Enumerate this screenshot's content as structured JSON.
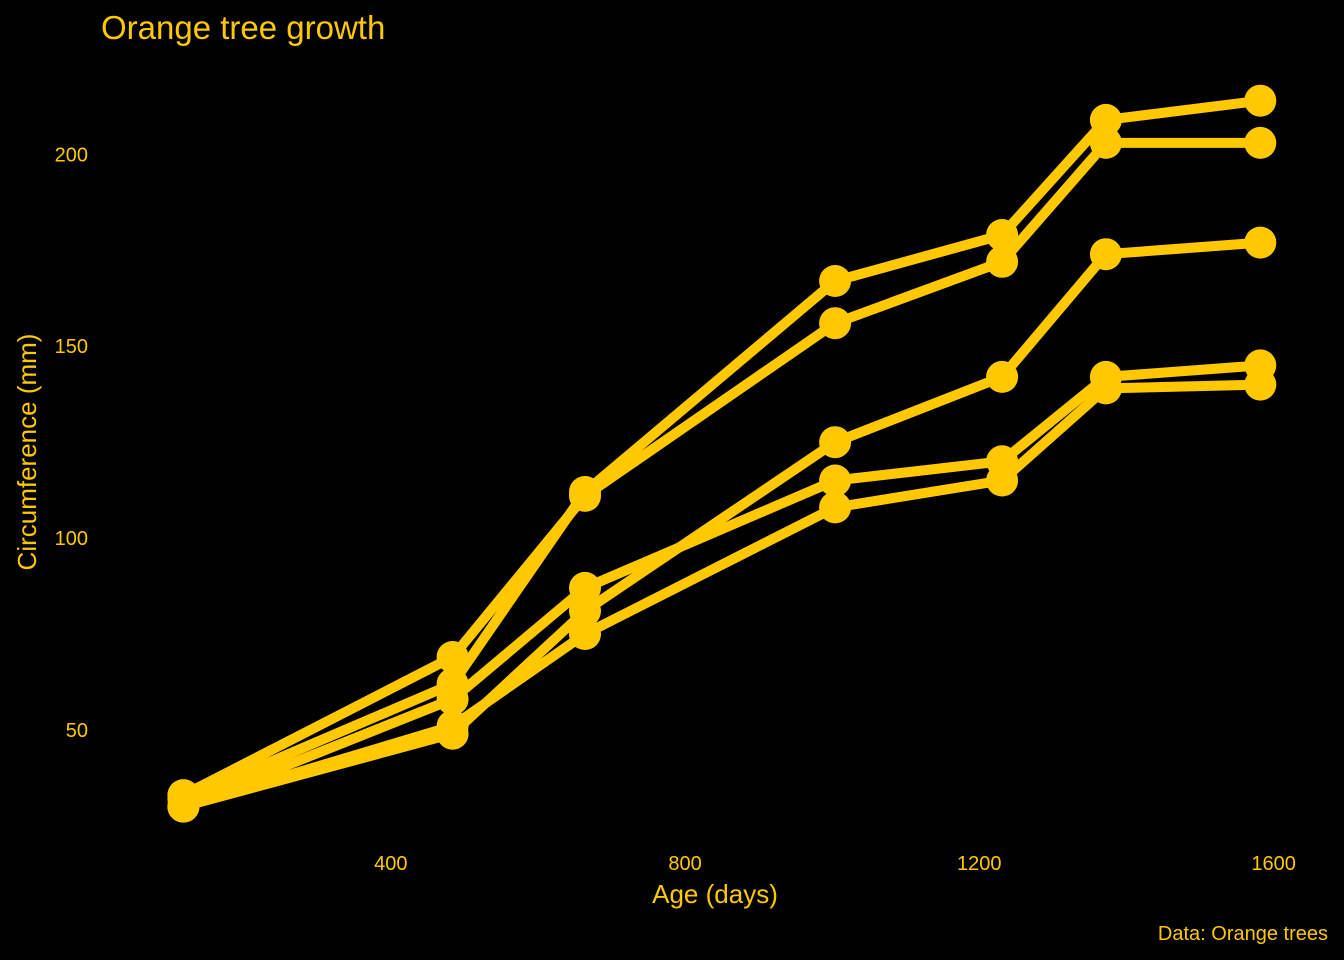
{
  "colors": {
    "background": "#000000",
    "accent": "#FFC800"
  },
  "chart_data": {
    "type": "line",
    "title": "Orange tree growth",
    "xlabel": "Age (days)",
    "ylabel": "Circumference (mm)",
    "caption": "Data: Orange trees",
    "xlim": [
      40,
      1640
    ],
    "ylim": [
      20,
      222
    ],
    "xticks": [
      400,
      800,
      1200,
      1600
    ],
    "yticks": [
      50,
      100,
      150,
      200
    ],
    "grid": false,
    "legend": "none",
    "x": [
      118,
      484,
      664,
      1004,
      1231,
      1372,
      1582
    ],
    "series": [
      {
        "values": [
          30,
          58,
          87,
          115,
          120,
          142,
          145
        ]
      },
      {
        "values": [
          33,
          69,
          111,
          156,
          172,
          203,
          203
        ]
      },
      {
        "values": [
          30,
          51,
          75,
          108,
          115,
          139,
          140
        ]
      },
      {
        "values": [
          32,
          62,
          112,
          167,
          179,
          209,
          214
        ]
      },
      {
        "values": [
          30,
          49,
          81,
          125,
          142,
          174,
          177
        ]
      }
    ]
  }
}
